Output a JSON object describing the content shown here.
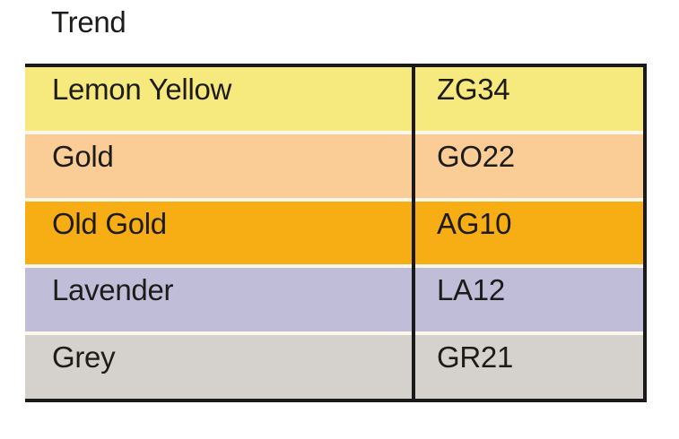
{
  "title": "Trend",
  "table": {
    "border_color": "#1a1a1a",
    "text_color": "#1d1c1a",
    "gap_color": "#fcf7ea",
    "columns": [
      "color-name",
      "color-code"
    ],
    "rows": [
      {
        "name": "Lemon Yellow",
        "code": "ZG34",
        "color": "#f6e97e"
      },
      {
        "name": "Gold",
        "code": "GO22",
        "color": "#fbcd96"
      },
      {
        "name": "Old Gold",
        "code": "AG10",
        "color": "#f7ad14"
      },
      {
        "name": "Lavender",
        "code": "LA12",
        "color": "#c0bdd9"
      },
      {
        "name": "Grey",
        "code": "GR21",
        "color": "#d5d1cc"
      }
    ]
  }
}
